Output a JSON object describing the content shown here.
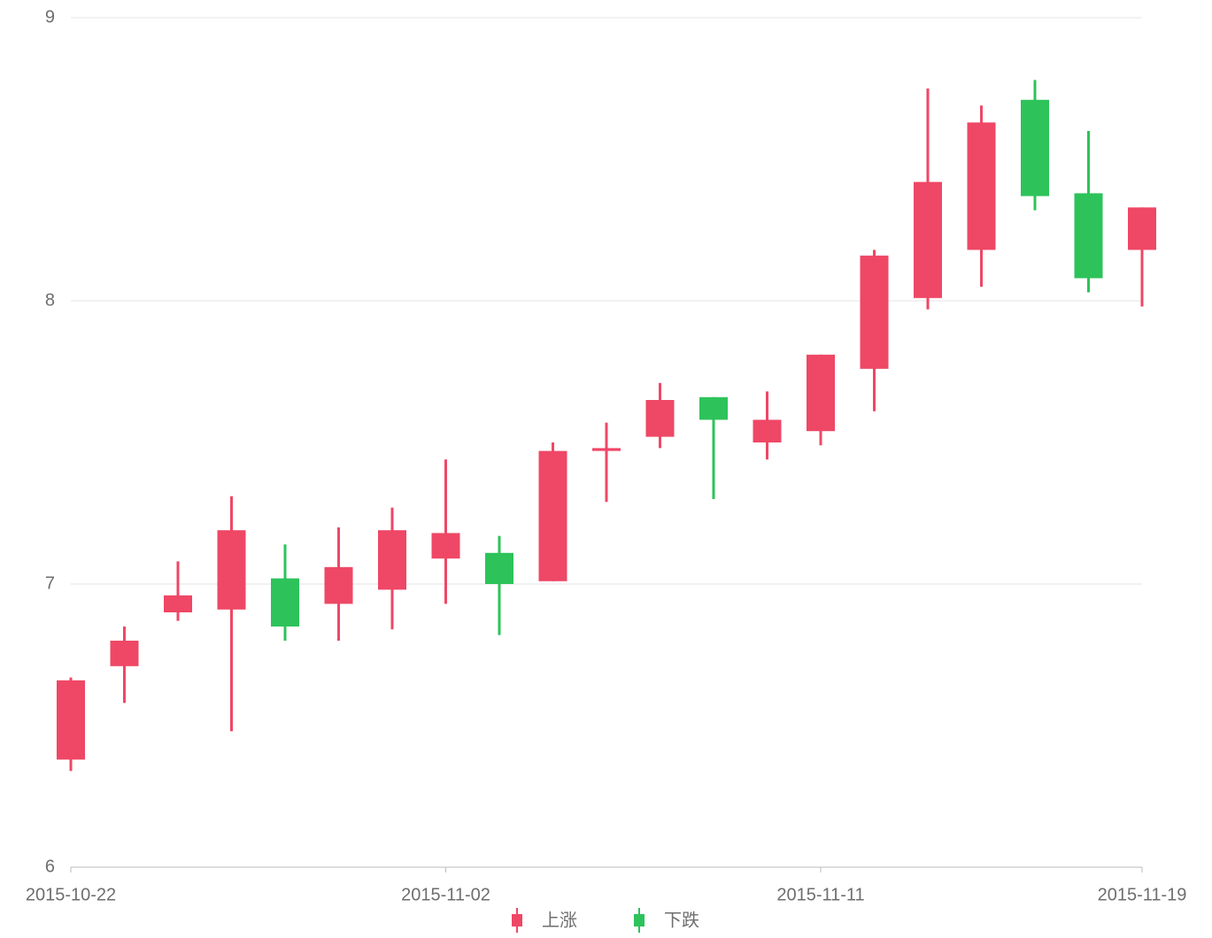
{
  "chart_data": {
    "type": "candlestick",
    "categories": [
      "2015-10-22",
      null,
      null,
      null,
      null,
      null,
      null,
      "2015-11-02",
      null,
      null,
      null,
      null,
      null,
      null,
      "2015-11-11",
      null,
      null,
      null,
      null,
      null,
      "2015-11-19"
    ],
    "open": [
      6.38,
      6.71,
      6.9,
      6.91,
      7.02,
      6.93,
      6.98,
      7.09,
      7.11,
      7.01,
      7.47,
      7.52,
      7.66,
      7.5,
      7.54,
      7.76,
      8.01,
      8.18,
      8.71,
      8.38,
      8.18
    ],
    "close": [
      6.66,
      6.8,
      6.96,
      7.19,
      6.85,
      7.06,
      7.19,
      7.18,
      7.0,
      7.47,
      7.48,
      7.65,
      7.58,
      7.58,
      7.81,
      8.16,
      8.42,
      8.63,
      8.37,
      8.08,
      8.33
    ],
    "low": [
      6.34,
      6.58,
      6.87,
      6.48,
      6.8,
      6.8,
      6.84,
      6.93,
      6.82,
      7.01,
      7.29,
      7.48,
      7.3,
      7.44,
      7.49,
      7.61,
      7.97,
      8.05,
      8.32,
      8.03,
      7.98
    ],
    "high": [
      6.67,
      6.85,
      7.08,
      7.31,
      7.14,
      7.2,
      7.27,
      7.44,
      7.17,
      7.5,
      7.57,
      7.71,
      7.66,
      7.68,
      7.81,
      8.18,
      8.75,
      8.69,
      8.78,
      8.6,
      8.33
    ],
    "legend": [
      {
        "name": "上涨",
        "color": "#ef4766"
      },
      {
        "name": "下跌",
        "color": "#2dc35a"
      }
    ],
    "ylim": [
      6,
      9
    ],
    "yticks": [
      6,
      7,
      8,
      9
    ],
    "grid": true
  }
}
